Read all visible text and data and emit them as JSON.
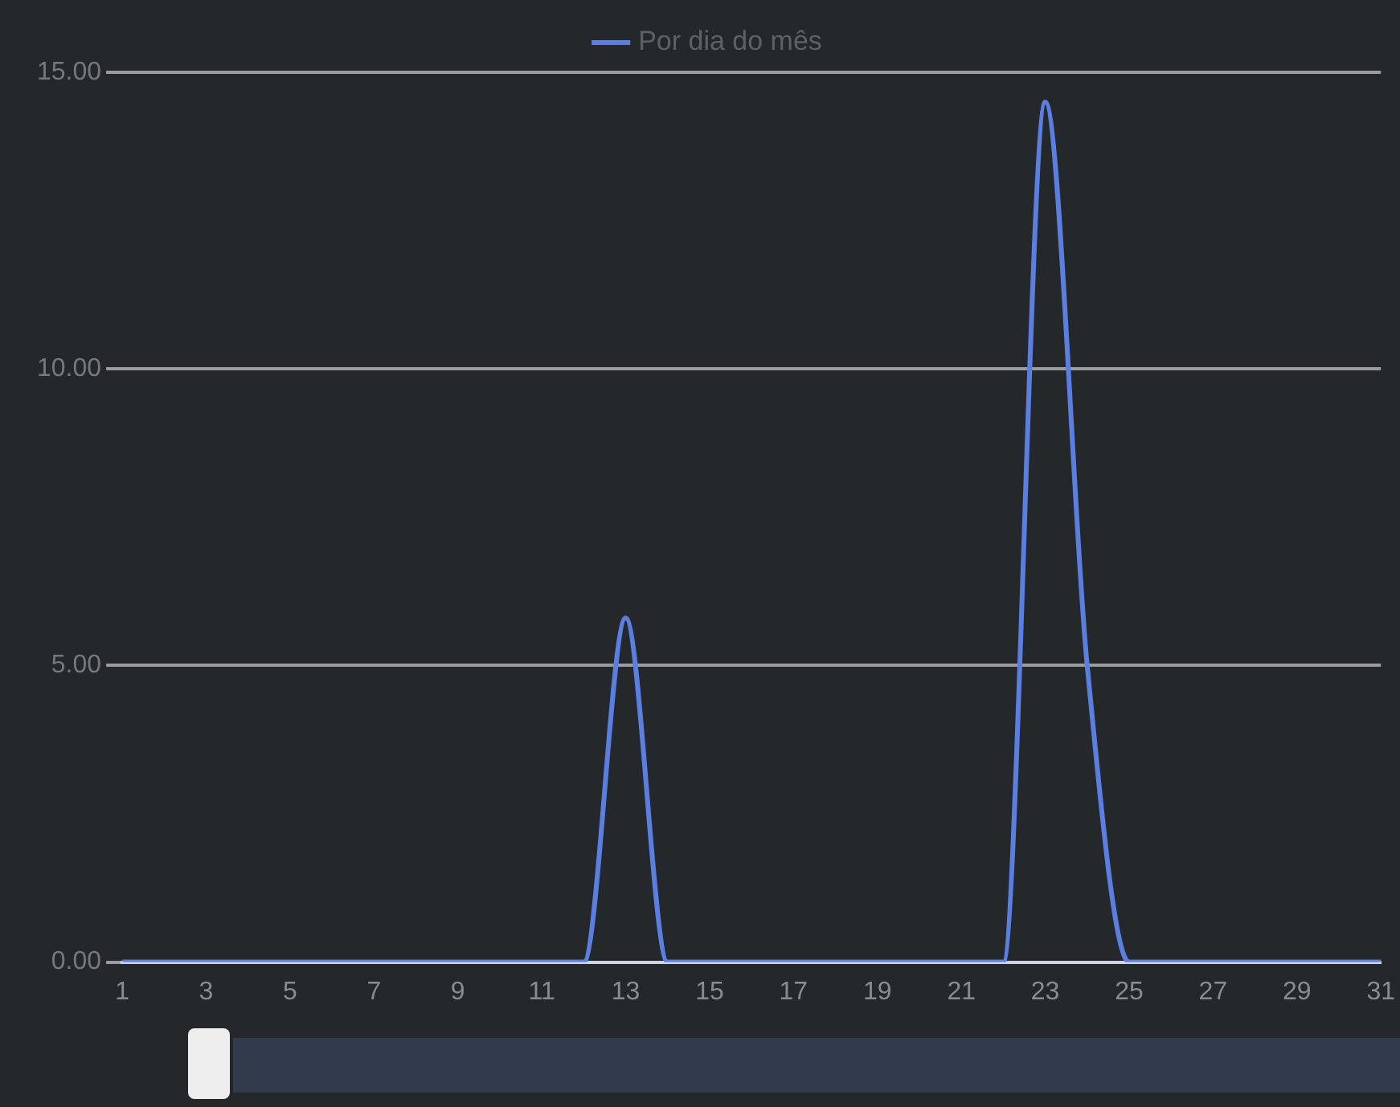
{
  "chart_data": {
    "type": "line",
    "x": [
      1,
      2,
      3,
      4,
      5,
      6,
      7,
      8,
      9,
      10,
      11,
      12,
      13,
      14,
      15,
      16,
      17,
      18,
      19,
      20,
      21,
      22,
      23,
      24,
      25,
      26,
      27,
      28,
      29,
      30,
      31
    ],
    "series": [
      {
        "name": "Por dia do mês",
        "color": "#5b7fe0",
        "values": [
          0,
          0,
          0,
          0,
          0,
          0,
          0,
          0,
          0,
          0,
          0,
          0,
          5.8,
          0,
          0,
          0,
          0,
          0,
          0,
          0,
          0,
          0,
          14.5,
          5,
          0,
          0,
          0,
          0,
          0,
          0,
          0
        ]
      }
    ],
    "xlim": [
      1,
      31
    ],
    "xticks": [
      1,
      3,
      5,
      7,
      9,
      11,
      13,
      15,
      17,
      19,
      21,
      23,
      25,
      27,
      29,
      31
    ],
    "ylim": [
      0,
      15
    ],
    "yticks": [
      {
        "value": 0,
        "label": "0.00"
      },
      {
        "value": 5,
        "label": "5.00"
      },
      {
        "value": 10,
        "label": "10.00"
      },
      {
        "value": 15,
        "label": "15.00"
      }
    ],
    "grid": "y",
    "legend": "top",
    "marker": "none",
    "line_style": "solid"
  }
}
